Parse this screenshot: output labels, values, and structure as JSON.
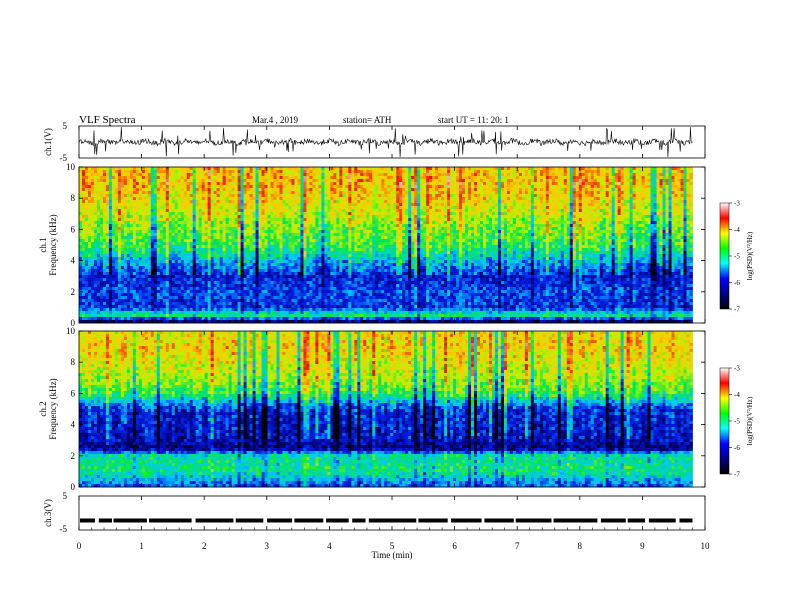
{
  "header": {
    "title": "VLF  Spectra",
    "date": "Mar.4  , 2019",
    "station": "station= ATH",
    "start": "start  UT  =    11: 20: 1"
  },
  "panels": {
    "ch1_wave": {
      "ylabel": "ch.1(V)",
      "ticks": [
        "5",
        "-5"
      ]
    },
    "ch1_spec": {
      "ylabel_a": "ch.1",
      "ylabel_b": "Frequency  (kHz)",
      "yticks": [
        "10",
        "8",
        "6",
        "4",
        "2",
        "0"
      ]
    },
    "ch2_spec": {
      "ylabel_a": "ch.2",
      "ylabel_b": "Frequency  (kHz)",
      "yticks": [
        "10",
        "8",
        "6",
        "4",
        "2",
        "0"
      ]
    },
    "ch3_wave": {
      "ylabel": "ch.3(V)",
      "ticks": [
        "5",
        "-5"
      ]
    }
  },
  "colorbar": {
    "label": "log(PSD)(V²/Hz)",
    "ticks": [
      "-3",
      "-4",
      "-5",
      "-6",
      "-7"
    ],
    "colors": [
      "#ffffff",
      "#ff0000",
      "#ffff00",
      "#00ff00",
      "#00ffff",
      "#0000ff",
      "#000080",
      "#000000"
    ]
  },
  "xaxis": {
    "label": "Time  (min)",
    "ticks": [
      "0",
      "1",
      "2",
      "3",
      "4",
      "5",
      "6",
      "7",
      "8",
      "9",
      "10"
    ]
  },
  "chart_data": {
    "type": "heatmap",
    "title": "VLF  Spectra",
    "xlabel": "Time  (min)",
    "xlim": [
      0,
      10
    ],
    "data_extent_min": 9.8,
    "panels": [
      {
        "name": "ch.1(V)",
        "kind": "waveform",
        "ylim": [
          -5,
          5
        ],
        "mean_level": 0
      },
      {
        "name": "ch.1",
        "kind": "spectrogram",
        "ylabel": "Frequency  (kHz)",
        "ylim": [
          0,
          10
        ],
        "zlabel": "log(PSD)(V²/Hz)",
        "zlim": [
          -7,
          -3
        ],
        "level_profile": [
          {
            "f": 0.0,
            "log_psd": -6.9
          },
          {
            "f": 0.5,
            "log_psd": -5.2
          },
          {
            "f": 1.0,
            "log_psd": -6.1
          },
          {
            "f": 2.0,
            "log_psd": -6.0
          },
          {
            "f": 3.0,
            "log_psd": -6.2
          },
          {
            "f": 4.0,
            "log_psd": -5.6
          },
          {
            "f": 5.0,
            "log_psd": -5.0
          },
          {
            "f": 6.0,
            "log_psd": -4.8
          },
          {
            "f": 7.0,
            "log_psd": -4.5
          },
          {
            "f": 8.0,
            "log_psd": -4.3
          },
          {
            "f": 9.0,
            "log_psd": -4.1
          },
          {
            "f": 10.0,
            "log_psd": -4.2
          }
        ]
      },
      {
        "name": "ch.2",
        "kind": "spectrogram",
        "ylabel": "Frequency  (kHz)",
        "ylim": [
          0,
          10
        ],
        "zlabel": "log(PSD)(V²/Hz)",
        "zlim": [
          -7,
          -3
        ],
        "level_profile": [
          {
            "f": 0.0,
            "log_psd": -6.0
          },
          {
            "f": 1.0,
            "log_psd": -5.2
          },
          {
            "f": 2.0,
            "log_psd": -5.3
          },
          {
            "f": 2.5,
            "log_psd": -6.6
          },
          {
            "f": 3.0,
            "log_psd": -6.3
          },
          {
            "f": 4.0,
            "log_psd": -6.2
          },
          {
            "f": 5.0,
            "log_psd": -6.1
          },
          {
            "f": 6.0,
            "log_psd": -5.0
          },
          {
            "f": 7.0,
            "log_psd": -4.6
          },
          {
            "f": 8.0,
            "log_psd": -4.4
          },
          {
            "f": 9.0,
            "log_psd": -4.2
          },
          {
            "f": 10.0,
            "log_psd": -4.3
          }
        ]
      },
      {
        "name": "ch.3(V)",
        "kind": "waveform",
        "ylim": [
          -5,
          5
        ],
        "mean_level": -2.2
      }
    ]
  }
}
